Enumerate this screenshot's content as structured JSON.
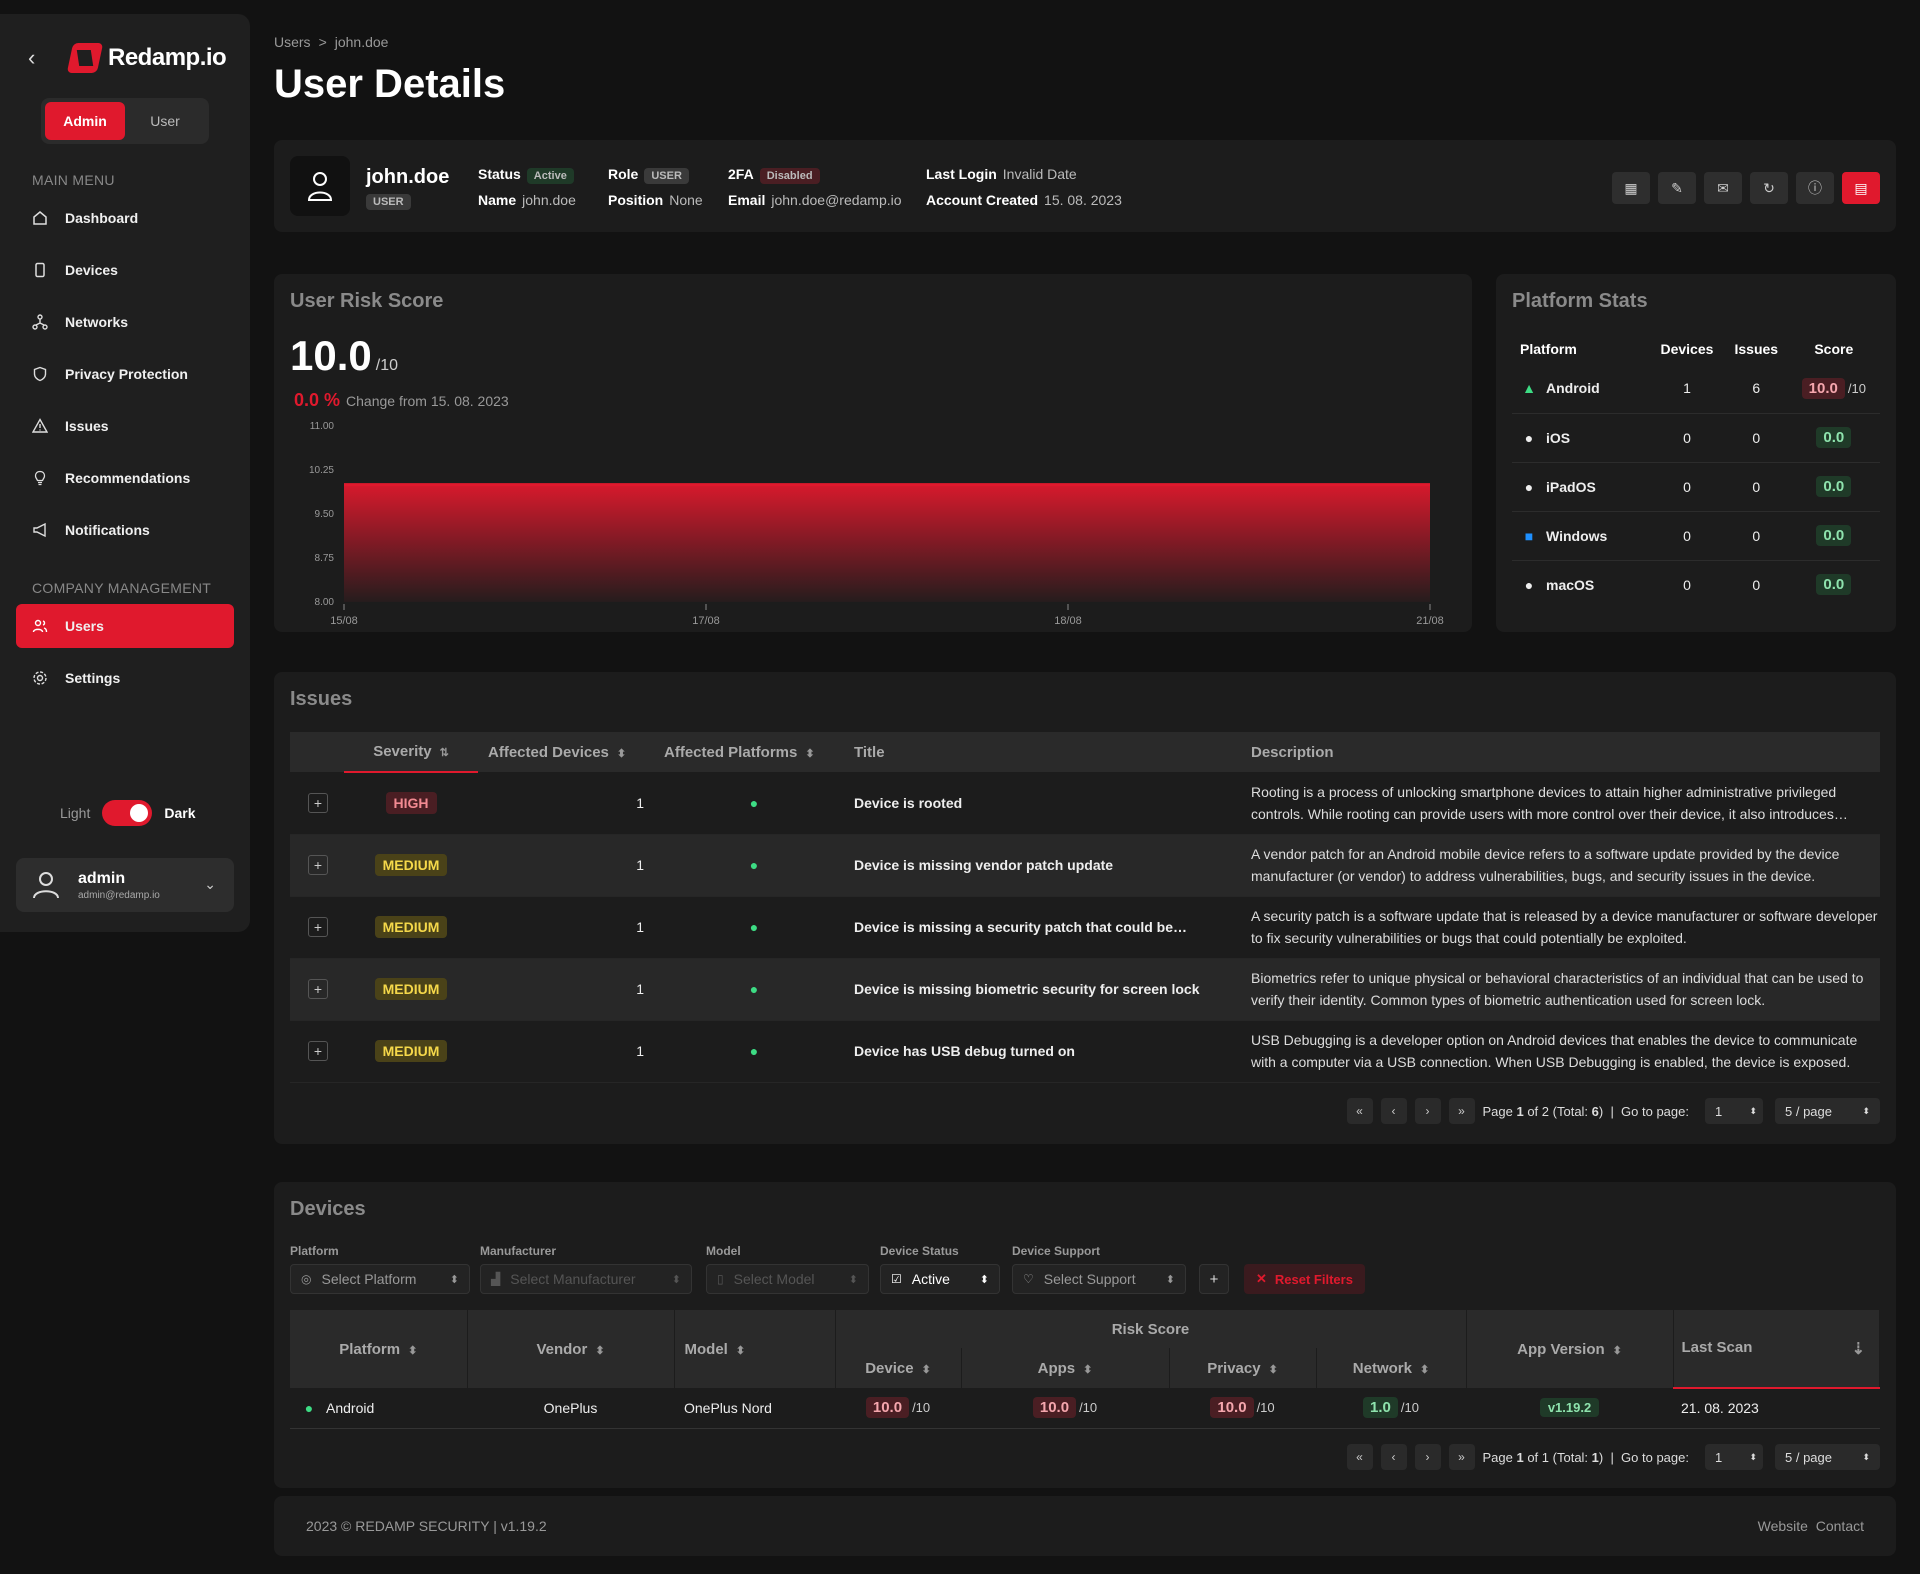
{
  "brand": {
    "name": "Redamp.io"
  },
  "role_switch": {
    "admin": "Admin",
    "user": "User"
  },
  "sidebar": {
    "main_title": "MAIN MENU",
    "main_items": [
      {
        "label": "Dashboard",
        "icon": "home-icon"
      },
      {
        "label": "Devices",
        "icon": "phone-icon"
      },
      {
        "label": "Networks",
        "icon": "network-icon"
      },
      {
        "label": "Privacy Protection",
        "icon": "shield-icon"
      },
      {
        "label": "Issues",
        "icon": "warning-icon"
      },
      {
        "label": "Recommendations",
        "icon": "lightbulb-icon"
      },
      {
        "label": "Notifications",
        "icon": "megaphone-icon"
      }
    ],
    "company_title": "COMPANY MANAGEMENT",
    "company_items": [
      {
        "label": "Users",
        "icon": "users-icon",
        "active": true
      },
      {
        "label": "Settings",
        "icon": "gear-icon"
      }
    ],
    "theme": {
      "light": "Light",
      "dark": "Dark"
    },
    "account": {
      "name": "admin",
      "email": "admin@redamp.io"
    }
  },
  "breadcrumb": {
    "root": "Users",
    "sep": ">",
    "current": "john.doe"
  },
  "page_title": "User Details",
  "user": {
    "username": "john.doe",
    "role_badge": "USER",
    "status_label": "Status",
    "status": "Active",
    "name_label": "Name",
    "name": "john.doe",
    "role_label": "Role",
    "role": "USER",
    "position_label": "Position",
    "position": "None",
    "tfa_label": "2FA",
    "tfa": "Disabled",
    "email_label": "Email",
    "email": "john.doe@redamp.io",
    "last_login_label": "Last Login",
    "last_login": "Invalid Date",
    "created_label": "Account Created",
    "created": "15. 08. 2023"
  },
  "risk": {
    "title": "User Risk Score",
    "score": "10.0",
    "out_of": "/10",
    "change": "0.0 %",
    "change_text": "Change from 15. 08. 2023"
  },
  "chart_data": {
    "type": "area",
    "x": [
      "15/08",
      "17/08",
      "18/08",
      "21/08"
    ],
    "series": [
      {
        "values": [
          10.0,
          10.0,
          10.0,
          10.0
        ]
      }
    ],
    "yticks": [
      "11.00",
      "10.25",
      "9.50",
      "8.75",
      "8.00"
    ],
    "ylim": [
      8.0,
      11.0
    ],
    "color": "#e0192d"
  },
  "platform_stats": {
    "title": "Platform Stats",
    "headers": [
      "Platform",
      "Devices",
      "Issues",
      "Score"
    ],
    "rows": [
      {
        "platform": "Android",
        "devices": "1",
        "issues": "6",
        "score": "10.0",
        "suffix": "/10",
        "level": "r",
        "icon": "android-icon"
      },
      {
        "platform": "iOS",
        "devices": "0",
        "issues": "0",
        "score": "0.0",
        "suffix": "",
        "level": "g",
        "icon": "apple-icon"
      },
      {
        "platform": "iPadOS",
        "devices": "0",
        "issues": "0",
        "score": "0.0",
        "suffix": "",
        "level": "g",
        "icon": "apple-icon"
      },
      {
        "platform": "Windows",
        "devices": "0",
        "issues": "0",
        "score": "0.0",
        "suffix": "",
        "level": "g",
        "icon": "windows-icon"
      },
      {
        "platform": "macOS",
        "devices": "0",
        "issues": "0",
        "score": "0.0",
        "suffix": "",
        "level": "g",
        "icon": "apple-icon"
      }
    ]
  },
  "issues": {
    "title": "Issues",
    "headers": [
      "Severity",
      "Affected Devices",
      "Affected Platforms",
      "Title",
      "Description"
    ],
    "rows": [
      {
        "severity": "HIGH",
        "devices": "1",
        "title": "Device is rooted",
        "desc": "Rooting is a process of unlocking smartphone devices to attain higher administrative privileged controls. While rooting can provide users with more control over their device, it also introduces security risks."
      },
      {
        "severity": "MEDIUM",
        "devices": "1",
        "title": "Device is missing vendor patch update",
        "desc": "A vendor patch for an Android mobile device refers to a software update provided by the device manufacturer (or vendor) to address vulnerabilities, bugs, and security issues in the device."
      },
      {
        "severity": "MEDIUM",
        "devices": "1",
        "title": "Device is missing a security patch that could be…",
        "desc": "A security patch is a software update that is released by a device manufacturer or software developer to fix security vulnerabilities or bugs that could potentially be exploited."
      },
      {
        "severity": "MEDIUM",
        "devices": "1",
        "title": "Device is missing biometric security for screen lock",
        "desc": "Biometrics refer to unique physical or behavioral characteristics of an individual that can be used to verify their identity. Common types of biometric authentication used for screen lock."
      },
      {
        "severity": "MEDIUM",
        "devices": "1",
        "title": "Device has USB debug turned on",
        "desc": "USB Debugging is a developer option on Android devices that enables the device to communicate with a computer via a USB connection. When USB Debugging is enabled, the device is exposed."
      }
    ],
    "pager": {
      "page": "1",
      "of": "2",
      "total": "6",
      "goto_label": "Go to page:",
      "goto": "1",
      "per_page": "5 / page"
    }
  },
  "devices": {
    "title": "Devices",
    "filters": {
      "platform_label": "Platform",
      "platform": "Select Platform",
      "manufacturer_label": "Manufacturer",
      "manufacturer": "Select Manufacturer",
      "model_label": "Model",
      "model": "Select Model",
      "status_label": "Device Status",
      "status": "Active",
      "support_label": "Device Support",
      "support": "Select Support",
      "reset": "Reset Filters"
    },
    "headers": {
      "platform": "Platform",
      "vendor": "Vendor",
      "model": "Model",
      "risk": "Risk Score",
      "device": "Device",
      "apps": "Apps",
      "privacy": "Privacy",
      "network": "Network",
      "app_version": "App Version",
      "last_scan": "Last Scan"
    },
    "row": {
      "platform": "Android",
      "vendor": "OnePlus",
      "model": "OnePlus Nord",
      "device": "10.0",
      "apps": "10.0",
      "privacy": "10.0",
      "network": "1.0",
      "suffix": "/10",
      "app_version": "v1.19.2",
      "last_scan": "21. 08. 2023"
    },
    "pager": {
      "page": "1",
      "of": "1",
      "total": "1",
      "goto_label": "Go to page:",
      "goto": "1",
      "per_page": "5 / page"
    }
  },
  "footer": {
    "copy": "2023 © REDAMP SECURITY | v1.19.2",
    "website": "Website",
    "contact": "Contact"
  }
}
